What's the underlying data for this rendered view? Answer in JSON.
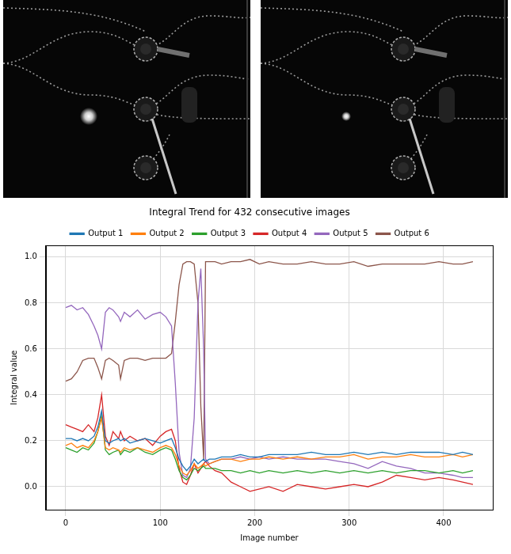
{
  "chart_data": {
    "type": "line",
    "title": "Integral Trend for 432 consecutive images",
    "x_label": "Image number",
    "y_label": "Integral value",
    "x": [
      0,
      6,
      12,
      18,
      24,
      30,
      34,
      38,
      42,
      46,
      50,
      56,
      58,
      62,
      68,
      76,
      84,
      92,
      100,
      106,
      112,
      116,
      120,
      124,
      128,
      132,
      136,
      140,
      143,
      146,
      148,
      152,
      158,
      165,
      175,
      185,
      195,
      205,
      215,
      230,
      245,
      260,
      275,
      290,
      305,
      320,
      335,
      350,
      365,
      380,
      395,
      410,
      420,
      431
    ],
    "xlim": [
      -21,
      452
    ],
    "xticks": [
      0,
      100,
      200,
      300,
      400
    ],
    "ylim": [
      -0.1,
      1.05
    ],
    "yticks": [
      {
        "value": 0,
        "label": "0.0"
      },
      {
        "value": 0.2,
        "label": "0.2"
      },
      {
        "value": 0.4,
        "label": "0.4"
      },
      {
        "value": 0.6,
        "label": "0.6"
      },
      {
        "value": 0.8,
        "label": "0.8"
      },
      {
        "value": 1.0,
        "label": "1.0"
      }
    ],
    "grid": true,
    "legend": "top",
    "series": [
      {
        "name": "Output 1",
        "color": "#1f77b4",
        "values": [
          0.21,
          0.21,
          0.2,
          0.21,
          0.2,
          0.22,
          0.26,
          0.33,
          0.2,
          0.19,
          0.2,
          0.21,
          0.2,
          0.21,
          0.19,
          0.2,
          0.21,
          0.2,
          0.19,
          0.2,
          0.21,
          0.17,
          0.12,
          0.09,
          0.07,
          0.09,
          0.12,
          0.1,
          0.11,
          0.12,
          0.11,
          0.12,
          0.12,
          0.13,
          0.13,
          0.14,
          0.13,
          0.13,
          0.14,
          0.14,
          0.14,
          0.15,
          0.14,
          0.14,
          0.15,
          0.14,
          0.15,
          0.14,
          0.15,
          0.15,
          0.15,
          0.14,
          0.15,
          0.14
        ]
      },
      {
        "name": "Output 2",
        "color": "#ff7f0e",
        "values": [
          0.18,
          0.19,
          0.17,
          0.18,
          0.17,
          0.2,
          0.24,
          0.3,
          0.17,
          0.16,
          0.17,
          0.16,
          0.15,
          0.17,
          0.16,
          0.17,
          0.16,
          0.15,
          0.17,
          0.18,
          0.17,
          0.14,
          0.09,
          0.06,
          0.05,
          0.07,
          0.1,
          0.08,
          0.09,
          0.1,
          0.09,
          0.1,
          0.11,
          0.12,
          0.12,
          0.11,
          0.12,
          0.12,
          0.13,
          0.12,
          0.13,
          0.12,
          0.13,
          0.13,
          0.14,
          0.12,
          0.13,
          0.13,
          0.14,
          0.13,
          0.13,
          0.14,
          0.13,
          0.14
        ]
      },
      {
        "name": "Output 3",
        "color": "#2ca02c",
        "values": [
          0.17,
          0.16,
          0.15,
          0.17,
          0.16,
          0.19,
          0.24,
          0.31,
          0.16,
          0.14,
          0.15,
          0.16,
          0.14,
          0.16,
          0.15,
          0.17,
          0.15,
          0.14,
          0.16,
          0.17,
          0.16,
          0.12,
          0.07,
          0.04,
          0.03,
          0.05,
          0.08,
          0.07,
          0.08,
          0.09,
          0.08,
          0.08,
          0.08,
          0.07,
          0.07,
          0.06,
          0.07,
          0.06,
          0.07,
          0.06,
          0.07,
          0.06,
          0.07,
          0.06,
          0.07,
          0.06,
          0.07,
          0.06,
          0.07,
          0.07,
          0.06,
          0.07,
          0.06,
          0.07
        ]
      },
      {
        "name": "Output 4",
        "color": "#d62728",
        "values": [
          0.27,
          0.26,
          0.25,
          0.24,
          0.27,
          0.24,
          0.3,
          0.4,
          0.22,
          0.18,
          0.24,
          0.21,
          0.24,
          0.2,
          0.22,
          0.2,
          0.21,
          0.18,
          0.22,
          0.24,
          0.25,
          0.2,
          0.08,
          0.02,
          0.01,
          0.05,
          0.1,
          0.06,
          0.08,
          0.1,
          0.11,
          0.09,
          0.07,
          0.06,
          0.02,
          0.0,
          -0.02,
          -0.01,
          0.0,
          -0.02,
          0.01,
          0.0,
          -0.01,
          0.0,
          0.01,
          0.0,
          0.02,
          0.05,
          0.04,
          0.03,
          0.04,
          0.03,
          0.02,
          0.01
        ]
      },
      {
        "name": "Output 5",
        "color": "#9467bd",
        "values": [
          0.78,
          0.79,
          0.77,
          0.78,
          0.75,
          0.7,
          0.66,
          0.6,
          0.76,
          0.78,
          0.77,
          0.74,
          0.72,
          0.76,
          0.74,
          0.77,
          0.73,
          0.75,
          0.76,
          0.74,
          0.7,
          0.45,
          0.15,
          0.05,
          0.04,
          0.08,
          0.3,
          0.8,
          0.95,
          0.6,
          0.12,
          0.1,
          0.11,
          0.12,
          0.12,
          0.13,
          0.12,
          0.13,
          0.12,
          0.13,
          0.12,
          0.12,
          0.12,
          0.11,
          0.1,
          0.08,
          0.11,
          0.09,
          0.08,
          0.06,
          0.06,
          0.05,
          0.04,
          0.04
        ]
      },
      {
        "name": "Output 6",
        "color": "#8c564b",
        "values": [
          0.46,
          0.47,
          0.5,
          0.55,
          0.56,
          0.56,
          0.52,
          0.47,
          0.55,
          0.56,
          0.55,
          0.53,
          0.47,
          0.55,
          0.56,
          0.56,
          0.55,
          0.56,
          0.56,
          0.56,
          0.58,
          0.72,
          0.88,
          0.97,
          0.98,
          0.98,
          0.97,
          0.8,
          0.35,
          0.12,
          0.98,
          0.98,
          0.98,
          0.97,
          0.98,
          0.98,
          0.99,
          0.97,
          0.98,
          0.97,
          0.97,
          0.98,
          0.97,
          0.97,
          0.98,
          0.96,
          0.97,
          0.97,
          0.97,
          0.97,
          0.98,
          0.97,
          0.97,
          0.98
        ]
      }
    ]
  }
}
